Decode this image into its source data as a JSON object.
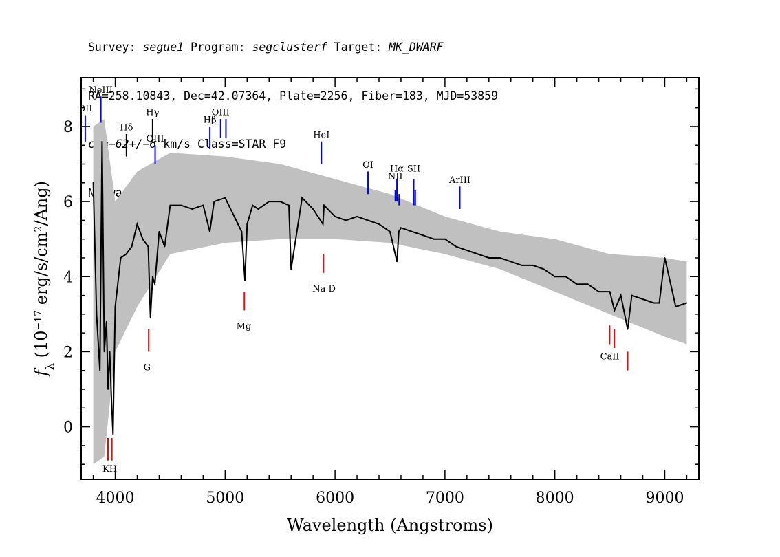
{
  "header": {
    "survey_label": "Survey: ",
    "survey": "segue1",
    "program_label": " Program: ",
    "program": "segclusterf",
    "target_label": " Target: ",
    "target": "MK_DWARF",
    "line2": "RA=258.10843, Dec=42.07364, Plate=2256, Fiber=183, MJD=53859",
    "cz_label": "cz",
    "cz_eq": "=",
    "cz_value": "−62+/−6",
    "cz_rest": " km/s Class=STAR F9",
    "line4": "No warnings."
  },
  "chart_data": {
    "type": "line",
    "xlabel": "Wavelength (Angstroms)",
    "ylabel": "f_λ (10^-17 erg/s/cm^2/Ang)",
    "xlim": [
      3690,
      9310
    ],
    "ylim": [
      -1.4,
      9.3
    ],
    "x_ticks": [
      4000,
      5000,
      6000,
      7000,
      8000,
      9000
    ],
    "y_ticks": [
      0,
      2,
      4,
      6,
      8
    ],
    "grid": false,
    "series": [
      {
        "role": "flux",
        "color": "#000000",
        "x": [
          3800,
          3830,
          3860,
          3880,
          3900,
          3920,
          3935,
          3950,
          3965,
          3980,
          4000,
          4050,
          4100,
          4150,
          4200,
          4250,
          4300,
          4320,
          4340,
          4360,
          4400,
          4450,
          4500,
          4600,
          4700,
          4800,
          4860,
          4900,
          5000,
          5100,
          5150,
          5180,
          5200,
          5250,
          5300,
          5400,
          5500,
          5580,
          5600,
          5700,
          5800,
          5890,
          5900,
          6000,
          6100,
          6200,
          6300,
          6400,
          6500,
          6563,
          6580,
          6600,
          6700,
          6800,
          6900,
          7000,
          7100,
          7200,
          7300,
          7400,
          7500,
          7600,
          7700,
          7800,
          7900,
          8000,
          8100,
          8200,
          8300,
          8400,
          8500,
          8542,
          8600,
          8662,
          8700,
          8800,
          8900,
          8950,
          9000,
          9100,
          9200
        ],
        "y": [
          6.5,
          3.0,
          1.5,
          7.6,
          2.0,
          2.8,
          1.0,
          2.0,
          0.8,
          -0.2,
          3.2,
          4.5,
          4.6,
          4.8,
          5.4,
          5.0,
          4.8,
          2.9,
          4.0,
          3.8,
          5.2,
          4.8,
          5.9,
          5.9,
          5.8,
          5.9,
          5.2,
          6.0,
          6.1,
          5.5,
          5.2,
          3.9,
          5.4,
          5.9,
          5.8,
          6.0,
          6.0,
          5.9,
          4.2,
          6.1,
          5.8,
          5.4,
          5.9,
          5.6,
          5.5,
          5.6,
          5.5,
          5.4,
          5.2,
          4.4,
          5.2,
          5.3,
          5.2,
          5.1,
          5.0,
          5.0,
          4.8,
          4.7,
          4.6,
          4.5,
          4.5,
          4.4,
          4.3,
          4.3,
          4.2,
          4.0,
          4.0,
          3.8,
          3.8,
          3.6,
          3.6,
          3.1,
          3.5,
          2.6,
          3.5,
          3.4,
          3.3,
          3.3,
          4.5,
          3.2,
          3.3
        ]
      },
      {
        "role": "noise-envelope",
        "color": "#c0c0c0",
        "x": [
          3800,
          3900,
          4000,
          4200,
          4500,
          5000,
          5500,
          6000,
          6500,
          7000,
          7500,
          8000,
          8500,
          9000,
          9200
        ],
        "y_low": [
          -1.0,
          -0.8,
          2.0,
          3.2,
          4.6,
          4.9,
          5.0,
          5.0,
          4.9,
          4.6,
          4.2,
          3.6,
          3.0,
          2.4,
          2.2
        ],
        "y_high": [
          8.0,
          8.2,
          6.0,
          6.8,
          7.3,
          7.2,
          7.0,
          6.6,
          6.2,
          5.6,
          5.2,
          5.0,
          4.6,
          4.5,
          4.4
        ]
      }
    ],
    "emission_lines": [
      {
        "label": "OII",
        "wavelength": 3727,
        "color": "#0000ff",
        "tick": [
          7.6,
          8.3
        ],
        "text_y": 8.4
      },
      {
        "label": "NeIII",
        "wavelength": 3869,
        "color": "#0000ff",
        "tick": [
          8.1,
          8.8
        ],
        "text_y": 8.9
      },
      {
        "label": "Hδ",
        "wavelength": 4102,
        "color": "#000000",
        "tick": [
          7.2,
          7.8
        ],
        "text_y": 7.9
      },
      {
        "label": "Hγ",
        "wavelength": 4340,
        "color": "#000000",
        "tick": [
          7.6,
          8.2
        ],
        "text_y": 8.3
      },
      {
        "label": "OIII",
        "wavelength": 4363,
        "color": "#0000ff",
        "tick": [
          7.0,
          7.5
        ],
        "text_y": 7.6
      },
      {
        "label": "Hβ",
        "wavelength": 4861,
        "color": "#0000ff",
        "tick": [
          7.4,
          8.0
        ],
        "text_y": 8.1
      },
      {
        "label": "OIII",
        "wavelength": 4959,
        "color": "#0000ff",
        "tick": [
          7.7,
          8.2
        ],
        "text_y": 8.3
      },
      {
        "label": "OIII",
        "wavelength": 5007,
        "color": "#0000ff",
        "tick": [
          7.7,
          8.2
        ]
      },
      {
        "label": "HeI",
        "wavelength": 5876,
        "color": "#0000ff",
        "tick": [
          7.0,
          7.6
        ],
        "text_y": 7.7
      },
      {
        "label": "OI",
        "wavelength": 6300,
        "color": "#0000ff",
        "tick": [
          6.2,
          6.8
        ],
        "text_y": 6.9
      },
      {
        "label": "NII",
        "wavelength": 6548,
        "color": "#0000ff",
        "tick": [
          6.0,
          6.3
        ],
        "text_y": 6.6
      },
      {
        "label": "Hα",
        "wavelength": 6563,
        "color": "#0000ff",
        "tick": [
          6.0,
          6.6
        ],
        "text_y": 6.8
      },
      {
        "label": "NII",
        "wavelength": 6583,
        "color": "#0000ff",
        "tick": [
          5.9,
          6.2
        ]
      },
      {
        "label": "SII",
        "wavelength": 6716,
        "color": "#0000ff",
        "tick": [
          5.9,
          6.6
        ],
        "text_y": 6.8
      },
      {
        "label": "SII",
        "wavelength": 6730,
        "color": "#0000ff",
        "tick": [
          5.9,
          6.3
        ]
      },
      {
        "label": "ArIII",
        "wavelength": 7135,
        "color": "#0000ff",
        "tick": [
          5.8,
          6.4
        ],
        "text_y": 6.5
      }
    ],
    "absorption_lines": [
      {
        "label": "K",
        "wavelength": 3934,
        "color": "#ff0000",
        "tick": [
          -0.9,
          -0.3
        ]
      },
      {
        "label": "H",
        "wavelength": 3969,
        "color": "#ff0000",
        "tick": [
          -0.9,
          -0.3
        ]
      },
      {
        "label": "G",
        "wavelength": 4304,
        "color": "#ff0000",
        "tick": [
          2.0,
          2.6
        ],
        "text_y": 1.5
      },
      {
        "label": "Mg",
        "wavelength": 5175,
        "color": "#ff0000",
        "tick": [
          3.1,
          3.6
        ],
        "text_y": 2.6
      },
      {
        "label": "Na",
        "wavelength": 5894,
        "color": "#ff0000",
        "tick": [
          4.1,
          4.6
        ],
        "text_y": 3.6
      },
      {
        "label": "CaII",
        "wavelength": 8498,
        "color": "#ff0000",
        "tick": [
          2.2,
          2.7
        ],
        "text_y": 1.8
      },
      {
        "label": "CaII",
        "wavelength": 8542,
        "color": "#ff0000",
        "tick": [
          2.1,
          2.6
        ]
      },
      {
        "label": "CaII",
        "wavelength": 8662,
        "color": "#ff0000",
        "tick": [
          1.5,
          2.0
        ]
      }
    ],
    "absorption_labels": [
      {
        "text": "KH",
        "wavelength": 3950,
        "y": -1.2
      },
      {
        "text": "G",
        "wavelength": 4290,
        "y": 1.5
      },
      {
        "text": "Mg",
        "wavelength": 5170,
        "y": 2.6
      },
      {
        "text": "Na  D",
        "wavelength": 5900,
        "y": 3.6
      },
      {
        "text": "CaII",
        "wavelength": 8500,
        "y": 1.8
      }
    ]
  }
}
